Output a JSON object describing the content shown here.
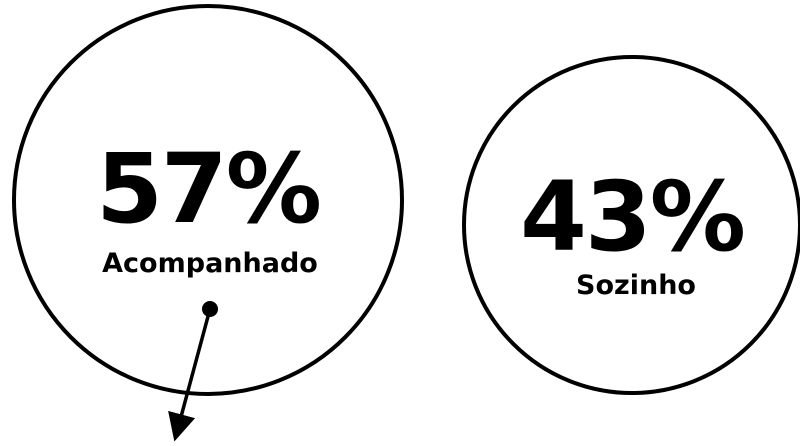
{
  "items": [
    {
      "value": "57%",
      "label": "Acompanhado"
    },
    {
      "value": "43%",
      "label": "Sozinho"
    }
  ]
}
